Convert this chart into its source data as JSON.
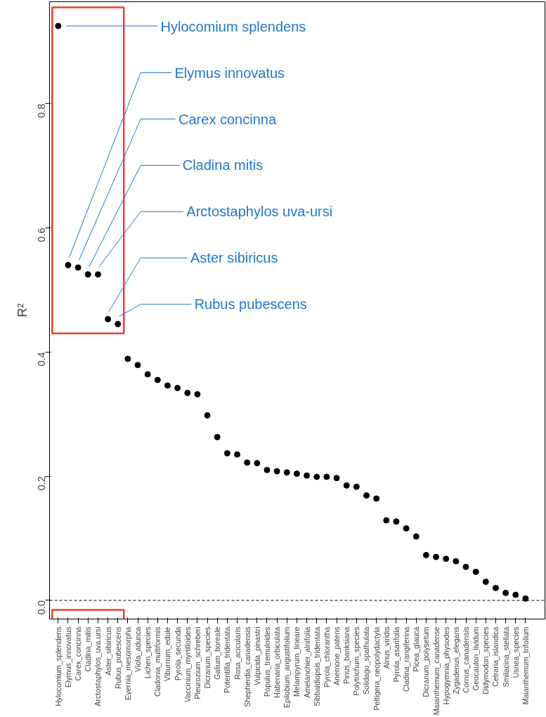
{
  "chart_data": {
    "type": "scatter",
    "ylabel": "R²",
    "marker": "circle",
    "grid": false,
    "categories": [
      "Hylocomium_splendens",
      "Elymus_innovatus",
      "Carex_concinna",
      "Cladina_mitis",
      "Arctostaphylos_uva.ursi",
      "Aster_sibiricus",
      "Rubus_pubescens",
      "Evernia_mesomorpha",
      "Viola_adunca",
      "Lichen_species",
      "Cladonia_multiformis",
      "Viburnum_edule",
      "Pyrola_secunda",
      "Vaccinium_myrtilloides",
      "Pleurozium_schreberi",
      "Dicranum_species",
      "Galium_boreale",
      "Potentilla_tridentata",
      "Rosa_acicularis",
      "Shepherdia_canadensis",
      "Vulpicida_pinastri",
      "Populus_tremuloides",
      "Habenaria_orbiculata",
      "Epilobium_angustifolium",
      "Melampyrum_lineare",
      "Amelanchier_alnifolia",
      "Sibbaldiopsis_tridentata",
      "Pyrola_chlorantha",
      "Anemone_patens",
      "Pinus_banksiana",
      "Polytrichum_species",
      "Solidago_spathulata",
      "Peltigera_neopolydactyla",
      "Alnus_viridis",
      "Pyrola_asarifolia",
      "Cladina_rangiferina",
      "Picea_glauca",
      "Dicranum_polysetum",
      "Maianthemum_canadense",
      "Hypogymnia_physodes",
      "Zygadenus_elegans",
      "Cornus_canadensis",
      "Geocaulon_lividum",
      "Didymodon_species",
      "Cetraria_islandica",
      "Smilacina_stellata",
      "Usnea_species",
      "Maianthemum_trifolium"
    ],
    "series": [
      {
        "color": "#000000",
        "values": [
          0.925,
          0.54,
          0.536,
          0.525,
          0.525,
          0.453,
          0.445,
          0.389,
          0.379,
          0.364,
          0.355,
          0.346,
          0.342,
          0.334,
          0.332,
          0.298,
          0.263,
          0.237,
          0.235,
          0.222,
          0.221,
          0.21,
          0.208,
          0.206,
          0.204,
          0.201,
          0.199,
          0.199,
          0.197,
          0.185,
          0.183,
          0.169,
          0.164,
          0.129,
          0.127,
          0.116,
          0.103,
          0.073,
          0.07,
          0.067,
          0.063,
          0.054,
          0.046,
          0.03,
          0.02,
          0.012,
          0.009,
          0.003
        ]
      }
    ],
    "ylim": [
      -0.03,
      0.964
    ],
    "yticks": [
      {
        "value": 0,
        "label": "0.0"
      },
      {
        "value": 0.2,
        "label": "0.2"
      },
      {
        "value": 0.4,
        "label": "0.4"
      },
      {
        "value": 0.6,
        "label": "0.6"
      },
      {
        "value": 0.8,
        "label": "0.8"
      }
    ],
    "ref_lines": [
      {
        "axis": "y",
        "value": 0,
        "line_style": "dashed",
        "color": "#000000"
      }
    ],
    "annotations": [
      "Hylocomium splendens",
      "Elymus innovatus",
      "Carex concinna",
      "Cladina mitis",
      "Arctostaphylos uva-ursi",
      "Aster sibiricus",
      "Rubus pubescens"
    ]
  }
}
